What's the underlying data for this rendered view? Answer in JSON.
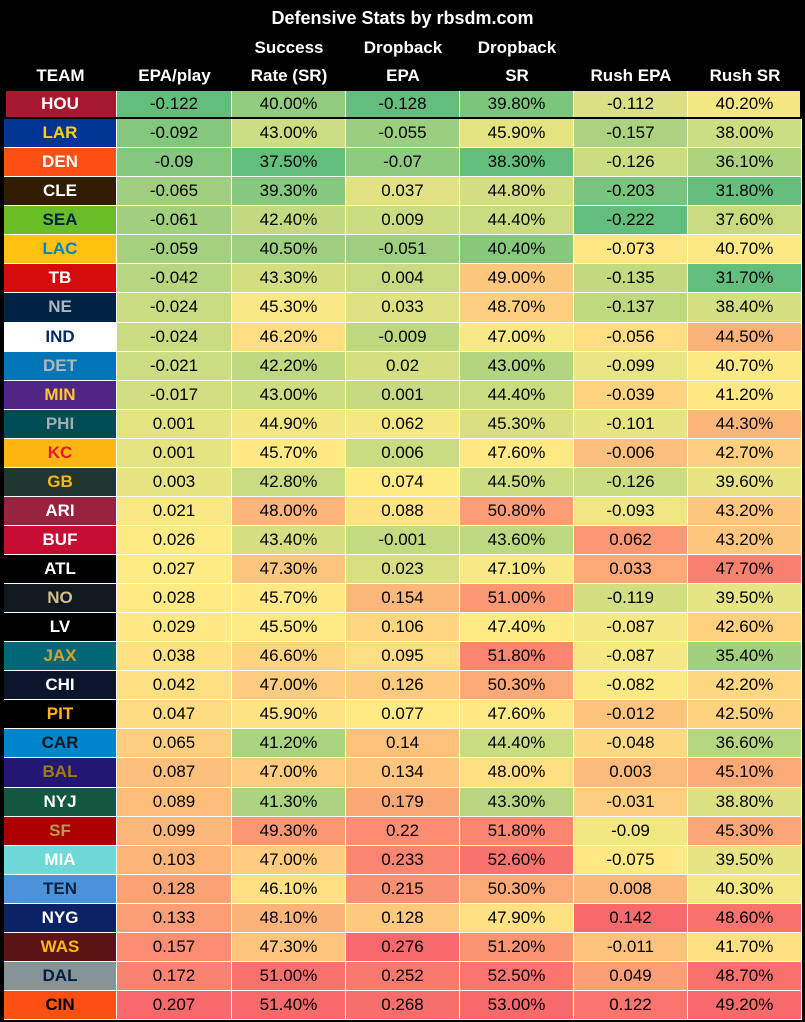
{
  "title": "Defensive Stats by rbsdm.com",
  "headers": [
    [
      "TEAM"
    ],
    [
      "EPA/play"
    ],
    [
      "Success",
      "Rate (SR)"
    ],
    [
      "Dropback",
      "EPA"
    ],
    [
      "Dropback",
      "SR"
    ],
    [
      "Rush EPA"
    ],
    [
      "Rush SR"
    ]
  ],
  "rows": [
    {
      "team": "HOU",
      "colors": [
        "#a6192e",
        "#ffffff"
      ],
      "cells": [
        "-0.122",
        "40.00%",
        "-0.128",
        "39.80%",
        "-0.112",
        "40.20%"
      ]
    },
    {
      "team": "LAR",
      "colors": [
        "#003594",
        "#ffd100"
      ],
      "cells": [
        "-0.092",
        "43.00%",
        "-0.055",
        "45.90%",
        "-0.157",
        "38.00%"
      ]
    },
    {
      "team": "DEN",
      "colors": [
        "#fb4f14",
        "#ffffff"
      ],
      "cells": [
        "-0.09",
        "37.50%",
        "-0.07",
        "38.30%",
        "-0.126",
        "36.10%"
      ]
    },
    {
      "team": "CLE",
      "colors": [
        "#311d00",
        "#ffffff"
      ],
      "cells": [
        "-0.065",
        "39.30%",
        "0.037",
        "44.80%",
        "-0.203",
        "31.80%"
      ]
    },
    {
      "team": "SEA",
      "colors": [
        "#69be28",
        "#002244"
      ],
      "cells": [
        "-0.061",
        "42.40%",
        "0.009",
        "44.40%",
        "-0.222",
        "37.60%"
      ]
    },
    {
      "team": "LAC",
      "colors": [
        "#ffc20e",
        "#0080c6"
      ],
      "cells": [
        "-0.059",
        "40.50%",
        "-0.051",
        "40.40%",
        "-0.073",
        "40.70%"
      ]
    },
    {
      "team": "TB",
      "colors": [
        "#d50a0a",
        "#ffffff"
      ],
      "cells": [
        "-0.042",
        "43.30%",
        "0.004",
        "49.00%",
        "-0.135",
        "31.70%"
      ]
    },
    {
      "team": "NE",
      "colors": [
        "#002244",
        "#b0b7bc"
      ],
      "cells": [
        "-0.024",
        "45.30%",
        "0.033",
        "48.70%",
        "-0.137",
        "38.40%"
      ]
    },
    {
      "team": "IND",
      "colors": [
        "#ffffff",
        "#002c5f"
      ],
      "cells": [
        "-0.024",
        "46.20%",
        "-0.009",
        "47.00%",
        "-0.056",
        "44.50%"
      ]
    },
    {
      "team": "DET",
      "colors": [
        "#0076b6",
        "#b0b7bc"
      ],
      "cells": [
        "-0.021",
        "42.20%",
        "0.02",
        "43.00%",
        "-0.099",
        "40.70%"
      ]
    },
    {
      "team": "MIN",
      "colors": [
        "#4f2683",
        "#ffc62f"
      ],
      "cells": [
        "-0.017",
        "43.00%",
        "0.001",
        "44.40%",
        "-0.039",
        "41.20%"
      ]
    },
    {
      "team": "PHI",
      "colors": [
        "#004c54",
        "#a5acaf"
      ],
      "cells": [
        "0.001",
        "44.90%",
        "0.062",
        "45.30%",
        "-0.101",
        "44.30%"
      ]
    },
    {
      "team": "KC",
      "colors": [
        "#ffb612",
        "#e31837"
      ],
      "cells": [
        "0.001",
        "45.70%",
        "0.006",
        "47.60%",
        "-0.006",
        "42.70%"
      ]
    },
    {
      "team": "GB",
      "colors": [
        "#203731",
        "#ffb612"
      ],
      "cells": [
        "0.003",
        "42.80%",
        "0.074",
        "44.50%",
        "-0.126",
        "39.60%"
      ]
    },
    {
      "team": "ARI",
      "colors": [
        "#97233f",
        "#ffffff"
      ],
      "cells": [
        "0.021",
        "48.00%",
        "0.088",
        "50.80%",
        "-0.093",
        "43.20%"
      ]
    },
    {
      "team": "BUF",
      "colors": [
        "#c60c30",
        "#ffffff"
      ],
      "cells": [
        "0.026",
        "43.40%",
        "-0.001",
        "43.60%",
        "0.062",
        "43.20%"
      ]
    },
    {
      "team": "ATL",
      "colors": [
        "#000000",
        "#ffffff"
      ],
      "cells": [
        "0.027",
        "47.30%",
        "0.023",
        "47.10%",
        "0.033",
        "47.70%"
      ]
    },
    {
      "team": "NO",
      "colors": [
        "#101820",
        "#d3bc8d"
      ],
      "cells": [
        "0.028",
        "45.70%",
        "0.154",
        "51.00%",
        "-0.119",
        "39.50%"
      ]
    },
    {
      "team": "LV",
      "colors": [
        "#000000",
        "#ffffff"
      ],
      "cells": [
        "0.029",
        "45.50%",
        "0.106",
        "47.40%",
        "-0.087",
        "42.60%"
      ]
    },
    {
      "team": "JAX",
      "colors": [
        "#006778",
        "#d7a22a"
      ],
      "cells": [
        "0.038",
        "46.60%",
        "0.095",
        "51.80%",
        "-0.087",
        "35.40%"
      ]
    },
    {
      "team": "CHI",
      "colors": [
        "#0b162a",
        "#ffffff"
      ],
      "cells": [
        "0.042",
        "47.00%",
        "0.126",
        "50.30%",
        "-0.082",
        "42.20%"
      ]
    },
    {
      "team": "PIT",
      "colors": [
        "#000000",
        "#ffb612"
      ],
      "cells": [
        "0.047",
        "45.90%",
        "0.077",
        "47.60%",
        "-0.012",
        "42.50%"
      ]
    },
    {
      "team": "CAR",
      "colors": [
        "#0085ca",
        "#101820"
      ],
      "cells": [
        "0.065",
        "41.20%",
        "0.14",
        "44.40%",
        "-0.048",
        "36.60%"
      ]
    },
    {
      "team": "BAL",
      "colors": [
        "#241773",
        "#9e7c0c"
      ],
      "cells": [
        "0.087",
        "47.00%",
        "0.134",
        "48.00%",
        "0.003",
        "45.10%"
      ]
    },
    {
      "team": "NYJ",
      "colors": [
        "#125740",
        "#ffffff"
      ],
      "cells": [
        "0.089",
        "41.30%",
        "0.179",
        "43.30%",
        "-0.031",
        "38.80%"
      ]
    },
    {
      "team": "SF",
      "colors": [
        "#aa0000",
        "#b3995d"
      ],
      "cells": [
        "0.099",
        "49.30%",
        "0.22",
        "51.80%",
        "-0.09",
        "45.30%"
      ]
    },
    {
      "team": "MIA",
      "colors": [
        "#6fd8d8",
        "#ffffff"
      ],
      "cells": [
        "0.103",
        "47.00%",
        "0.233",
        "52.60%",
        "-0.075",
        "39.50%"
      ]
    },
    {
      "team": "TEN",
      "colors": [
        "#4b92db",
        "#0c2340"
      ],
      "cells": [
        "0.128",
        "46.10%",
        "0.215",
        "50.30%",
        "0.008",
        "40.30%"
      ]
    },
    {
      "team": "NYG",
      "colors": [
        "#0b2265",
        "#ffffff"
      ],
      "cells": [
        "0.133",
        "48.10%",
        "0.128",
        "47.90%",
        "0.142",
        "48.60%"
      ]
    },
    {
      "team": "WAS",
      "colors": [
        "#5a1414",
        "#ffb612"
      ],
      "cells": [
        "0.157",
        "47.30%",
        "0.276",
        "51.20%",
        "-0.011",
        "41.70%"
      ]
    },
    {
      "team": "DAL",
      "colors": [
        "#869397",
        "#041e42"
      ],
      "cells": [
        "0.172",
        "51.00%",
        "0.252",
        "52.50%",
        "0.049",
        "48.70%"
      ]
    },
    {
      "team": "CIN",
      "colors": [
        "#fb4f14",
        "#000000"
      ],
      "cells": [
        "0.207",
        "51.40%",
        "0.268",
        "53.00%",
        "0.122",
        "49.20%"
      ]
    }
  ]
}
